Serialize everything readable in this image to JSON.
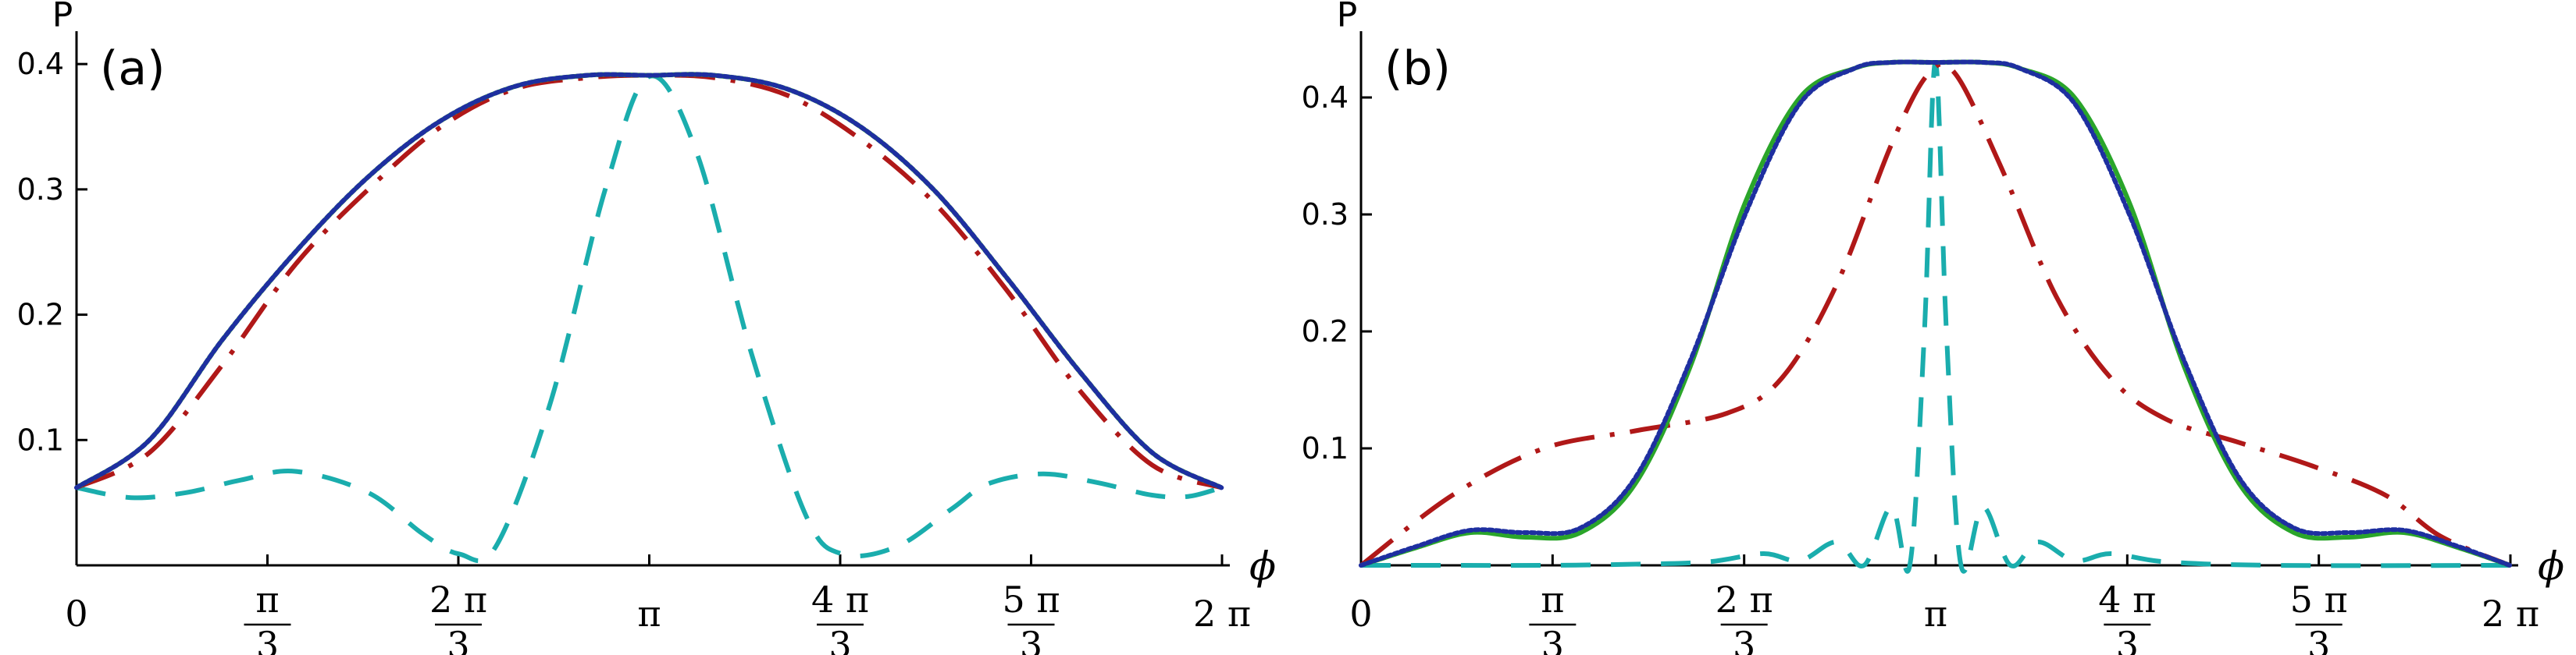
{
  "chart_data": [
    {
      "type": "line",
      "panel_label": "(a)",
      "xlabel": "ϕ",
      "ylabel": "P",
      "xlim": [
        0,
        6.2832
      ],
      "ylim": [
        0,
        0.42
      ],
      "grid": false,
      "y_ticks": [
        {
          "value": 0.1,
          "label": "0.1"
        },
        {
          "value": 0.2,
          "label": "0.2"
        },
        {
          "value": 0.3,
          "label": "0.3"
        },
        {
          "value": 0.4,
          "label": "0.4"
        }
      ],
      "x_ticks": [
        {
          "value": 0,
          "num": "0",
          "den": ""
        },
        {
          "value": 1.0472,
          "num": "π",
          "den": "3"
        },
        {
          "value": 2.0944,
          "num": "2 π",
          "den": "3"
        },
        {
          "value": 3.1416,
          "num": "π",
          "den": ""
        },
        {
          "value": 4.1888,
          "num": "4 π",
          "den": "3"
        },
        {
          "value": 5.236,
          "num": "5 π",
          "den": "3"
        },
        {
          "value": 6.2832,
          "num": "2 π",
          "den": ""
        }
      ],
      "series": [
        {
          "name": "teal-dashed",
          "color": "#1aadad",
          "dash": "long-dash",
          "x": [
            0,
            0.3,
            0.6,
            0.9,
            1.2,
            1.6,
            1.9,
            2.1,
            2.3,
            2.6,
            2.9,
            3.14,
            3.4,
            3.7,
            4.0,
            4.2,
            4.5,
            4.8,
            5.0,
            5.3,
            5.6,
            5.9,
            6.1,
            6.28
          ],
          "y": [
            0.062,
            0.054,
            0.058,
            0.068,
            0.075,
            0.058,
            0.025,
            0.009,
            0.015,
            0.13,
            0.3,
            0.39,
            0.33,
            0.17,
            0.04,
            0.009,
            0.015,
            0.045,
            0.065,
            0.073,
            0.066,
            0.056,
            0.055,
            0.062
          ]
        },
        {
          "name": "red-dash-dot",
          "color": "#b01818",
          "dash": "dash-dot",
          "x": [
            0,
            0.4,
            0.8,
            1.2,
            1.6,
            2.0,
            2.4,
            2.8,
            3.14,
            3.5,
            3.9,
            4.3,
            4.7,
            5.1,
            5.5,
            5.9,
            6.28
          ],
          "y": [
            0.062,
            0.09,
            0.16,
            0.24,
            0.3,
            0.35,
            0.38,
            0.389,
            0.391,
            0.389,
            0.375,
            0.34,
            0.29,
            0.22,
            0.14,
            0.08,
            0.062
          ]
        },
        {
          "name": "green-solid",
          "color": "#2aa52a",
          "dash": "solid",
          "x": [
            0,
            0.4,
            0.8,
            1.2,
            1.6,
            2.0,
            2.4,
            2.8,
            3.14,
            3.5,
            3.9,
            4.3,
            4.7,
            5.1,
            5.5,
            5.9,
            6.28
          ],
          "y": [
            0.062,
            0.1,
            0.18,
            0.25,
            0.31,
            0.355,
            0.382,
            0.391,
            0.391,
            0.391,
            0.38,
            0.35,
            0.3,
            0.23,
            0.155,
            0.09,
            0.062
          ]
        },
        {
          "name": "blue-dotted",
          "color": "#1e2fa0",
          "dash": "dotted",
          "x": [
            0,
            0.4,
            0.8,
            1.2,
            1.6,
            2.0,
            2.4,
            2.8,
            3.14,
            3.5,
            3.9,
            4.3,
            4.7,
            5.1,
            5.5,
            5.9,
            6.28
          ],
          "y": [
            0.062,
            0.1,
            0.18,
            0.25,
            0.31,
            0.355,
            0.382,
            0.391,
            0.391,
            0.391,
            0.38,
            0.35,
            0.3,
            0.23,
            0.155,
            0.09,
            0.062
          ]
        }
      ]
    },
    {
      "type": "line",
      "panel_label": "(b)",
      "xlabel": "ϕ",
      "ylabel": "P",
      "xlim": [
        0,
        6.2832
      ],
      "ylim": [
        0,
        0.45
      ],
      "grid": false,
      "y_ticks": [
        {
          "value": 0.1,
          "label": "0.1"
        },
        {
          "value": 0.2,
          "label": "0.2"
        },
        {
          "value": 0.3,
          "label": "0.3"
        },
        {
          "value": 0.4,
          "label": "0.4"
        }
      ],
      "x_ticks": [
        {
          "value": 0,
          "num": "0",
          "den": ""
        },
        {
          "value": 1.0472,
          "num": "π",
          "den": "3"
        },
        {
          "value": 2.0944,
          "num": "2 π",
          "den": "3"
        },
        {
          "value": 3.1416,
          "num": "π",
          "den": ""
        },
        {
          "value": 4.1888,
          "num": "4 π",
          "den": "3"
        },
        {
          "value": 5.236,
          "num": "5 π",
          "den": "3"
        },
        {
          "value": 6.2832,
          "num": "2 π",
          "den": ""
        }
      ],
      "series": [
        {
          "name": "teal-dashed",
          "color": "#1aadad",
          "dash": "long-dash",
          "x": [
            0,
            0.5,
            1.0,
            1.5,
            1.9,
            2.2,
            2.4,
            2.6,
            2.75,
            2.9,
            3.0,
            3.08,
            3.14,
            3.2,
            3.28,
            3.4,
            3.55,
            3.7,
            3.9,
            4.1,
            4.4,
            5.0,
            6.28
          ],
          "y": [
            0,
            0.0,
            0.0,
            0.001,
            0.003,
            0.01,
            0.004,
            0.02,
            0.0,
            0.05,
            0.0,
            0.2,
            0.43,
            0.2,
            0.0,
            0.05,
            0.0,
            0.02,
            0.004,
            0.01,
            0.003,
            0.0,
            0
          ]
        },
        {
          "name": "red-dash-dot",
          "color": "#b01818",
          "dash": "dash-dot",
          "x": [
            0,
            0.5,
            1.0,
            1.5,
            2.0,
            2.3,
            2.6,
            2.9,
            3.1,
            3.25,
            3.5,
            3.8,
            4.1,
            4.4,
            4.8,
            5.2,
            5.6,
            5.9,
            6.28
          ],
          "y": [
            0,
            0.06,
            0.1,
            0.115,
            0.13,
            0.16,
            0.24,
            0.36,
            0.42,
            0.42,
            0.34,
            0.23,
            0.16,
            0.125,
            0.105,
            0.085,
            0.06,
            0.025,
            0
          ]
        },
        {
          "name": "green-solid",
          "color": "#2aa52a",
          "dash": "solid",
          "x": [
            0,
            0.3,
            0.6,
            0.9,
            1.2,
            1.5,
            1.8,
            2.1,
            2.4,
            2.7,
            2.9,
            3.14,
            3.4,
            3.6,
            3.9,
            4.2,
            4.5,
            4.8,
            5.1,
            5.4,
            5.7,
            6.0,
            6.28
          ],
          "y": [
            0,
            0.015,
            0.028,
            0.024,
            0.028,
            0.07,
            0.17,
            0.31,
            0.4,
            0.425,
            0.43,
            0.43,
            0.43,
            0.425,
            0.4,
            0.31,
            0.17,
            0.07,
            0.028,
            0.024,
            0.028,
            0.015,
            0
          ]
        },
        {
          "name": "blue-dotted",
          "color": "#1e2fa0",
          "dash": "dotted",
          "x": [
            0,
            0.3,
            0.6,
            0.9,
            1.2,
            1.5,
            1.8,
            2.1,
            2.4,
            2.7,
            2.9,
            3.14,
            3.4,
            3.6,
            3.9,
            4.2,
            4.5,
            4.8,
            5.1,
            5.4,
            5.7,
            6.0,
            6.28
          ],
          "y": [
            0,
            0.016,
            0.03,
            0.028,
            0.032,
            0.075,
            0.175,
            0.3,
            0.395,
            0.425,
            0.43,
            0.43,
            0.43,
            0.425,
            0.395,
            0.3,
            0.175,
            0.075,
            0.032,
            0.028,
            0.03,
            0.016,
            0
          ]
        }
      ]
    }
  ]
}
